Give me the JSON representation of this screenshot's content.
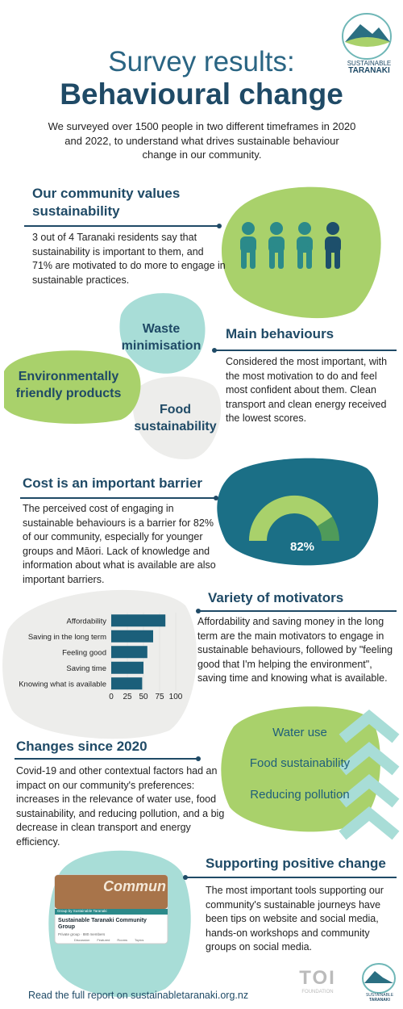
{
  "logo": {
    "line1": "SUSTAINABLE",
    "line2": "TARANAKI"
  },
  "header": {
    "title_line1": "Survey results:",
    "title_line2": "Behavioural change",
    "intro": "We surveyed over 1500 people in two different timeframes in 2020 and 2022, to understand what drives sustainable behaviour change in our community."
  },
  "values_section": {
    "heading": "Our community values sustainability",
    "body": "3 out of 4 Taranaki residents say that sustainability is important to them, and 71% are motivated to do more to engage in sustainable practices."
  },
  "behaviours_section": {
    "bubbles": [
      "Waste minimisation",
      "Environmentally friendly products",
      "Food sustainability"
    ],
    "heading": "Main behaviours",
    "body": "Considered the most important, with the most motivation to do and feel most confident about them. Clean transport and clean energy received the lowest scores."
  },
  "cost_section": {
    "heading": "Cost is an important barrier",
    "body": "The perceived cost of engaging in sustainable behaviours is a barrier for 82% of our community, especially for younger groups and Māori. Lack of knowledge and information about what is available are also important  barriers."
  },
  "motivators_section": {
    "heading": "Variety of motivators",
    "body": "Affordability and saving money in the long term are the main motivators to engage in sustainable behaviours, followed by \"feeling good that I'm helping the environment\", saving time and knowing what is available."
  },
  "changes_section": {
    "items": [
      "Water use",
      "Food sustainability",
      "Reducing pollution"
    ],
    "heading": "Changes since 2020",
    "body": "Covid-19 and other contextual factors had an impact on our community's preferences: increases in the relevance of water use, food sustainability, and reducing pollution,  and a big decrease in clean transport and energy efficiency."
  },
  "support_section": {
    "heading": "Supporting positive change",
    "body": "The most important tools supporting our community's sustainable journeys have been tips on website and social media, hands-on workshops and community groups on social media.",
    "screenshot": {
      "banner": "Commun",
      "group_by": "Group by Sustainable Taranaki",
      "group_name": "Sustainable Taranaki Community Group",
      "members": "Private group · 880 members",
      "tabs": [
        "Discussion",
        "Featured",
        "Rooms",
        "Topics"
      ]
    }
  },
  "footer": {
    "link_text": "Read the full report on sustainabletaranaki.org.nz",
    "partner_logo": "TOI",
    "partner_name": "FOUNDATION",
    "partner2_line1": "SUSTAINABLE",
    "partner2_line2": "TARANAKI"
  },
  "chart_data": [
    {
      "type": "bar",
      "orientation": "horizontal",
      "categories": [
        "Affordability",
        "Saving in the long term",
        "Feeling good",
        "Saving time",
        "Knowing what is available"
      ],
      "values": [
        84,
        65,
        56,
        50,
        48
      ],
      "color": "#1b5f7a",
      "xlim": [
        0,
        100
      ],
      "xticks": [
        0,
        25,
        50,
        75,
        100
      ]
    },
    {
      "type": "gauge",
      "values": [
        82
      ],
      "value_labels": [
        "82%"
      ],
      "ylim": [
        0,
        100
      ],
      "color": "#a9d16b"
    }
  ]
}
